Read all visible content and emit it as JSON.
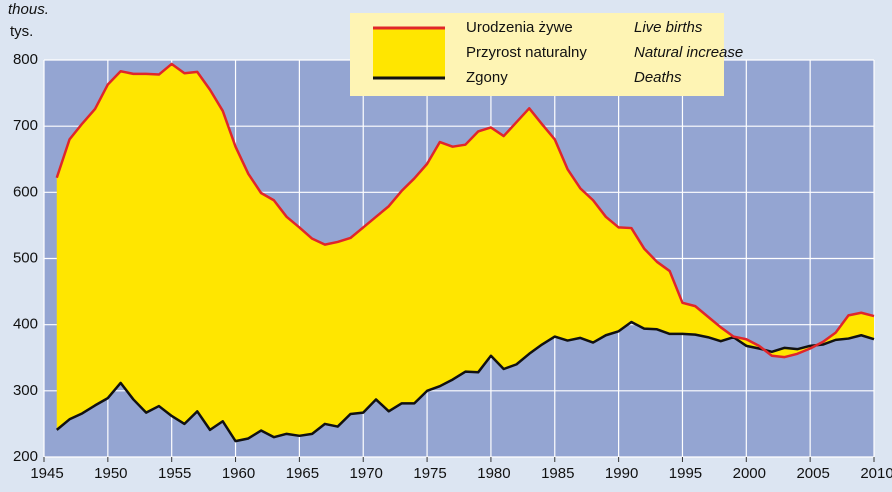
{
  "chart_data": {
    "type": "area-between",
    "unit_en": "thous.",
    "unit_pl": "tys.",
    "x": [
      1946,
      1947,
      1948,
      1949,
      1950,
      1951,
      1952,
      1953,
      1954,
      1955,
      1956,
      1957,
      1958,
      1959,
      1960,
      1961,
      1962,
      1963,
      1964,
      1965,
      1966,
      1967,
      1968,
      1969,
      1970,
      1971,
      1972,
      1973,
      1974,
      1975,
      1976,
      1977,
      1978,
      1979,
      1980,
      1981,
      1982,
      1983,
      1984,
      1985,
      1986,
      1987,
      1988,
      1989,
      1990,
      1991,
      1992,
      1993,
      1994,
      1995,
      1996,
      1997,
      1998,
      1999,
      2000,
      2001,
      2002,
      2003,
      2004,
      2005,
      2006,
      2007,
      2008,
      2009,
      2010
    ],
    "series": [
      {
        "name": "Urodzenia żywe",
        "name_en": "Live births",
        "color": "#e0262a",
        "values": [
          622,
          680,
          704,
          726,
          763,
          783,
          779,
          779,
          778,
          794,
          780,
          782,
          755,
          723,
          669,
          628,
          599,
          588,
          563,
          547,
          530,
          521,
          525,
          531,
          547,
          563,
          579,
          602,
          621,
          643,
          676,
          669,
          672,
          692,
          698,
          685,
          706,
          727,
          703,
          680,
          635,
          606,
          588,
          563,
          547,
          546,
          515,
          495,
          481,
          433,
          428,
          412,
          396,
          382,
          378,
          368,
          353,
          351,
          356,
          364,
          374,
          388,
          414,
          418,
          413
        ]
      },
      {
        "name": "Zgony",
        "name_en": "Deaths",
        "color": "#111111",
        "values": [
          241,
          257,
          266,
          278,
          289,
          312,
          287,
          267,
          277,
          262,
          250,
          269,
          241,
          254,
          224,
          228,
          240,
          230,
          235,
          232,
          235,
          250,
          246,
          265,
          267,
          287,
          269,
          281,
          281,
          300,
          307,
          317,
          329,
          328,
          353,
          333,
          340,
          356,
          370,
          382,
          376,
          380,
          373,
          384,
          390,
          404,
          394,
          393,
          386,
          386,
          385,
          381,
          375,
          381,
          368,
          364,
          359,
          365,
          363,
          368,
          370,
          377,
          379,
          384,
          378
        ]
      }
    ],
    "fill": {
      "name": "Przyrost naturalny",
      "name_en": "Natural increase",
      "color": "#ffe600"
    },
    "xlim": [
      1945,
      2010
    ],
    "xticks": [
      1945,
      1950,
      1955,
      1960,
      1965,
      1970,
      1975,
      1980,
      1985,
      1990,
      1995,
      2000,
      2005,
      2010
    ],
    "ylim": [
      200,
      800
    ],
    "yticks": [
      200,
      300,
      400,
      500,
      600,
      700,
      800
    ],
    "grid": true
  }
}
